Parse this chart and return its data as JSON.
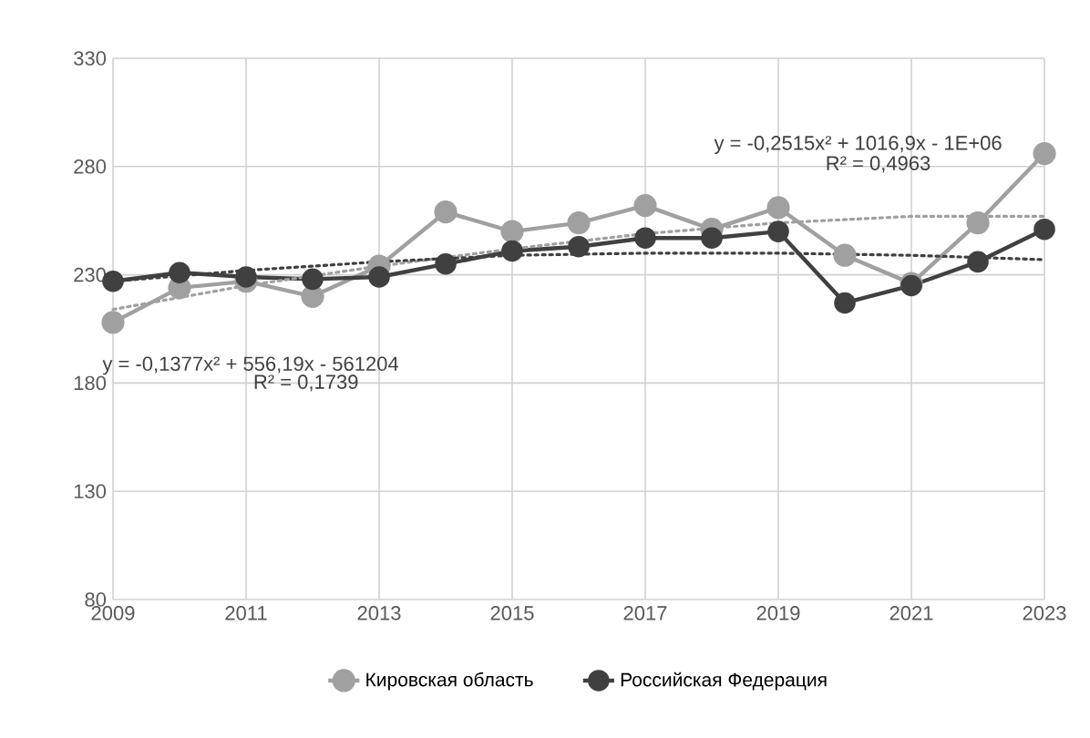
{
  "chart_data": {
    "type": "line",
    "x": [
      2009,
      2010,
      2011,
      2012,
      2013,
      2014,
      2015,
      2016,
      2017,
      2018,
      2019,
      2020,
      2021,
      2022,
      2023
    ],
    "xlim": [
      2009,
      2023
    ],
    "xticks": [
      2009,
      2011,
      2013,
      2015,
      2017,
      2019,
      2021,
      2023
    ],
    "ylim": [
      80,
      330
    ],
    "yticks": [
      80,
      130,
      180,
      230,
      280,
      330
    ],
    "grid": true,
    "legend": "bottom",
    "marker": "circle",
    "line_style": "solid",
    "series": [
      {
        "name": "Кировская область",
        "color": "#a0a0a0",
        "values": [
          208,
          224,
          227,
          220,
          234,
          259,
          250,
          254,
          262,
          251,
          261,
          239,
          226,
          254,
          286
        ]
      },
      {
        "name": "Российская Федерация",
        "color": "#404040",
        "values": [
          227,
          231,
          229,
          228,
          229,
          235,
          241,
          243,
          247,
          247,
          250,
          217,
          225,
          236,
          251
        ]
      },
      {
        "type": "line",
        "color": "#a0a0a0",
        "marker": "none",
        "line_style": "dotted",
        "x": [
          2009,
          2011,
          2013,
          2015,
          2017,
          2019,
          2021,
          2023
        ],
        "values": [
          214,
          225,
          234,
          242,
          249,
          254,
          257,
          257
        ]
      },
      {
        "type": "line",
        "color": "#404040",
        "marker": "none",
        "line_style": "dotted",
        "x": [
          2009,
          2011,
          2013,
          2015,
          2017,
          2019,
          2021,
          2023
        ],
        "values": [
          227,
          232,
          236,
          239,
          240,
          240,
          239,
          237
        ]
      }
    ],
    "annotations": [
      "y = -0,1377x² + 556,19x - 561204",
      "R² = 0,1739",
      "y = -0,2515x² + 1016,9x - 1E+06",
      "R² = 0,4963"
    ]
  }
}
